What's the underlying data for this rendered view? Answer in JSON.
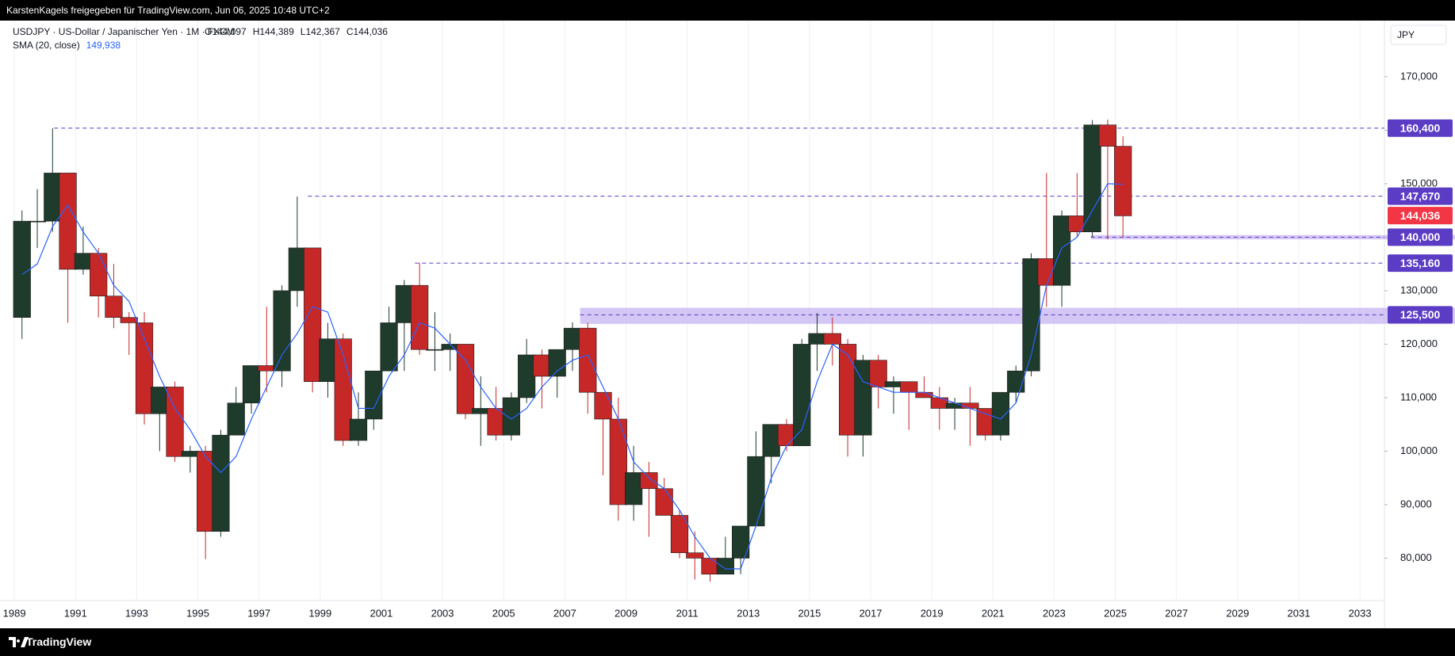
{
  "header": {
    "shared_by": "KarstenKagels freigegeben für TradingView.com, Jun 06, 2025 10:48 UTC+2"
  },
  "footer": {
    "brand": "TradingView"
  },
  "chart_data": {
    "type": "candlestick",
    "symbol": "USDJPY · US-Dollar / Japanischer Yen · 1M · FXCM",
    "ohlc_labels": [
      "O144,097",
      "H144,389",
      "L142,367",
      "C144,036"
    ],
    "currency": "JPY",
    "x": [
      1989.25,
      1989.75,
      1990.25,
      1990.75,
      1991.25,
      1991.75,
      1992.25,
      1992.75,
      1993.25,
      1993.75,
      1994.25,
      1994.75,
      1995.25,
      1995.75,
      1996.25,
      1996.75,
      1997.25,
      1997.75,
      1998.25,
      1998.75,
      1999.25,
      1999.75,
      2000.25,
      2000.75,
      2001.25,
      2001.75,
      2002.25,
      2002.75,
      2003.25,
      2003.75,
      2004.25,
      2004.75,
      2005.25,
      2005.75,
      2006.25,
      2006.75,
      2007.25,
      2007.75,
      2008.25,
      2008.75,
      2009.25,
      2009.75,
      2010.25,
      2010.75,
      2011.25,
      2011.75,
      2012.25,
      2012.75,
      2013.25,
      2013.75,
      2014.25,
      2014.75,
      2015.25,
      2015.75,
      2016.25,
      2016.75,
      2017.25,
      2017.75,
      2018.25,
      2018.75,
      2019.25,
      2019.75,
      2020.25,
      2020.75,
      2021.25,
      2021.75,
      2022.25,
      2022.75,
      2023.25,
      2023.75,
      2024.25,
      2024.75,
      2025.25
    ],
    "open": [
      125,
      143,
      143,
      152,
      134,
      137,
      129,
      125,
      124,
      107,
      112,
      99,
      100,
      85,
      103,
      109,
      116,
      115,
      130,
      138,
      113,
      121,
      102,
      106,
      115,
      124,
      131,
      119,
      119,
      120,
      107,
      108,
      103,
      110,
      118,
      114,
      119,
      123,
      111,
      106,
      90,
      96,
      93,
      88,
      81,
      80,
      77,
      80,
      86,
      99,
      105,
      101,
      120,
      122,
      120,
      103,
      117,
      112,
      113,
      111,
      110,
      108,
      109,
      108,
      103,
      111,
      115,
      136,
      131,
      144,
      141,
      161,
      157
    ],
    "high": [
      145,
      149,
      160.4,
      152,
      142,
      138,
      135,
      126,
      126,
      112,
      113,
      101,
      101,
      104,
      112,
      116,
      127,
      131,
      147.6,
      138,
      124,
      122,
      111,
      115,
      127,
      132,
      135.2,
      126,
      122,
      120,
      114,
      112,
      111,
      121,
      119,
      119,
      124.1,
      124,
      111,
      110,
      101,
      98,
      95,
      89,
      85,
      80,
      84,
      86,
      103.7,
      105,
      106,
      121,
      125.8,
      125,
      121,
      118,
      118,
      114,
      113,
      114,
      112,
      110,
      112,
      108,
      111,
      116,
      137,
      152,
      145,
      152,
      161.9,
      162,
      158.9
    ],
    "low": [
      121,
      138,
      141,
      124,
      133,
      125,
      123,
      118,
      105,
      100,
      98,
      96,
      79.8,
      84,
      103,
      107,
      111,
      112,
      127,
      111,
      110,
      101,
      101,
      104,
      115,
      115,
      118,
      115,
      115,
      106,
      101,
      102,
      102,
      109,
      108,
      110,
      115,
      107,
      95.5,
      87,
      87,
      84,
      88,
      80,
      76,
      75.6,
      77,
      77,
      86,
      94,
      100,
      101,
      115,
      116,
      99,
      99,
      108,
      107,
      104,
      110,
      104,
      104,
      101,
      102,
      102,
      109,
      114,
      127,
      127,
      140,
      140,
      139.6,
      139.9
    ],
    "close": [
      143,
      143,
      152,
      134,
      137,
      129,
      125,
      124,
      107,
      112,
      99,
      100,
      85,
      103,
      109,
      116,
      115,
      130,
      138,
      113,
      121,
      102,
      106,
      115,
      124,
      131,
      119,
      119,
      120,
      107,
      108,
      103,
      110,
      118,
      114,
      119,
      123,
      111,
      106,
      90,
      96,
      93,
      88,
      81,
      80,
      77,
      80,
      86,
      99,
      105,
      101,
      120,
      122,
      120,
      103,
      117,
      112,
      113,
      111,
      110,
      108,
      109,
      108,
      103,
      111,
      115,
      136,
      131,
      144,
      141,
      161,
      157,
      144
    ],
    "up_color": "#1f3b2b",
    "down_color": "#c62828",
    "sma": {
      "name": "SMA (20, close)",
      "color": "#2962ff",
      "value_label": "149,938",
      "values": [
        133,
        135,
        142,
        146,
        141,
        137,
        131,
        128,
        121,
        114,
        108,
        104,
        99,
        96,
        99,
        106,
        112,
        118,
        122,
        127,
        126,
        118,
        108,
        108,
        114,
        118,
        124,
        123,
        120,
        117,
        112,
        108,
        106,
        108,
        112,
        115,
        117,
        118,
        112,
        106,
        98,
        95,
        93,
        89,
        84,
        80,
        78,
        78,
        86,
        95,
        101,
        104,
        113,
        120,
        118,
        113,
        112,
        111,
        111,
        111,
        110,
        109,
        108,
        107,
        106,
        109,
        118,
        131,
        138,
        140,
        145,
        150,
        149.9
      ]
    },
    "xlim": [
      1988.79,
      2033.8
    ],
    "xticks": [
      1989,
      1991,
      1993,
      1995,
      1997,
      1999,
      2001,
      2003,
      2005,
      2007,
      2009,
      2011,
      2013,
      2015,
      2017,
      2019,
      2021,
      2023,
      2025,
      2027,
      2029,
      2031,
      2033
    ],
    "ylim": [
      74,
      180.5
    ],
    "yticks": [
      {
        "value": 80,
        "label": "80,000"
      },
      {
        "value": 90,
        "label": "90,000"
      },
      {
        "value": 100,
        "label": "100,000"
      },
      {
        "value": 110,
        "label": "110,000"
      },
      {
        "value": 120,
        "label": "120,000"
      },
      {
        "value": 130,
        "label": "130,000"
      },
      {
        "value": 140,
        "label": "140,000"
      },
      {
        "value": 150,
        "label": "150,000"
      },
      {
        "value": 160,
        "label": "160,000"
      },
      {
        "value": 170,
        "label": "170,000"
      }
    ],
    "xgrid": true,
    "ygrid": false,
    "level_color": "#5b3cc4",
    "band_color": "#c9b8f2",
    "levels": [
      {
        "value": 160.4,
        "label": "160,400",
        "from": 1990.3
      },
      {
        "value": 147.67,
        "label": "147,670",
        "from": 1998.6
      },
      {
        "value": 140,
        "label": "140,000",
        "from": 2024.2,
        "band": [
          139.6,
          140.4
        ]
      },
      {
        "value": 135.16,
        "label": "135,160",
        "from": 2002.1
      },
      {
        "value": 125.5,
        "label": "125,500",
        "from": 2007.5,
        "band": [
          123.8,
          126.8
        ]
      }
    ],
    "last_price": {
      "value": 144.036,
      "label": "144,036",
      "color": "#f23645"
    }
  }
}
